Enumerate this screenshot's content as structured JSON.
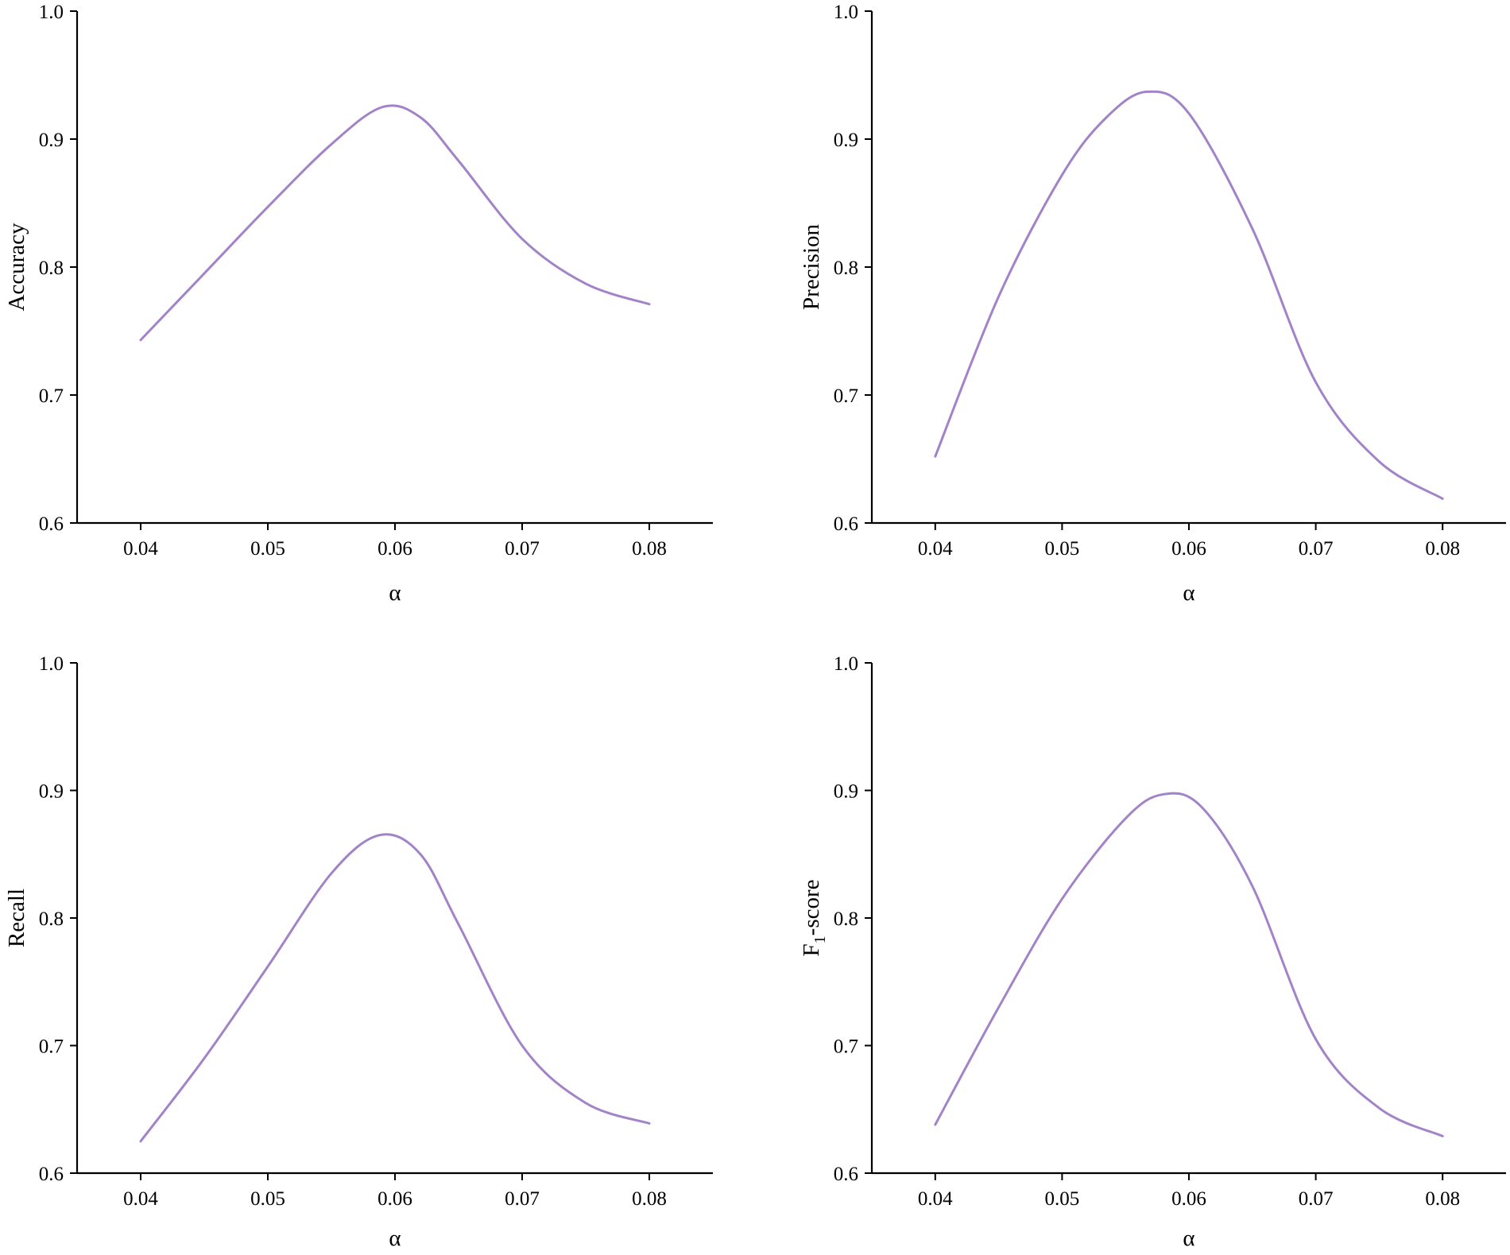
{
  "chart_data": [
    {
      "type": "line",
      "xlabel": "α",
      "ylabel": "Accuracy",
      "xlim": [
        0.035,
        0.085
      ],
      "ylim": [
        0.6,
        1.0
      ],
      "x_ticks": [
        "0.04",
        "0.05",
        "0.06",
        "0.07",
        "0.08"
      ],
      "y_ticks": [
        "0.6",
        "0.7",
        "0.8",
        "0.9",
        "1.0"
      ],
      "line_color": "#a283c8",
      "x": [
        0.04,
        0.045,
        0.05,
        0.055,
        0.059,
        0.062,
        0.065,
        0.07,
        0.075,
        0.08
      ],
      "values": [
        0.743,
        0.795,
        0.847,
        0.896,
        0.925,
        0.917,
        0.883,
        0.822,
        0.787,
        0.771
      ]
    },
    {
      "type": "line",
      "xlabel": "α",
      "ylabel": "Precision",
      "xlim": [
        0.035,
        0.085
      ],
      "ylim": [
        0.6,
        1.0
      ],
      "x_ticks": [
        "0.04",
        "0.05",
        "0.06",
        "0.07",
        "0.08"
      ],
      "y_ticks": [
        "0.6",
        "0.7",
        "0.8",
        "0.9",
        "1.0"
      ],
      "line_color": "#a283c8",
      "x": [
        0.04,
        0.045,
        0.05,
        0.0535,
        0.0567,
        0.06,
        0.065,
        0.07,
        0.075,
        0.08
      ],
      "values": [
        0.652,
        0.777,
        0.872,
        0.917,
        0.937,
        0.92,
        0.83,
        0.71,
        0.648,
        0.619
      ]
    },
    {
      "type": "line",
      "xlabel": "α",
      "ylabel": "Recall",
      "xlim": [
        0.035,
        0.085
      ],
      "ylim": [
        0.6,
        1.0
      ],
      "x_ticks": [
        "0.04",
        "0.05",
        "0.06",
        "0.07",
        "0.08"
      ],
      "y_ticks": [
        "0.6",
        "0.7",
        "0.8",
        "0.9",
        "1.0"
      ],
      "line_color": "#a283c8",
      "x": [
        0.04,
        0.045,
        0.05,
        0.055,
        0.0588,
        0.062,
        0.065,
        0.07,
        0.075,
        0.08
      ],
      "values": [
        0.625,
        0.69,
        0.762,
        0.835,
        0.865,
        0.85,
        0.795,
        0.7,
        0.655,
        0.639
      ]
    },
    {
      "type": "line",
      "xlabel": "α",
      "ylabel": "F1-score",
      "ylabel_main": "F",
      "ylabel_sub": "1",
      "ylabel_suffix": "-score",
      "xlim": [
        0.035,
        0.085
      ],
      "ylim": [
        0.6,
        1.0
      ],
      "x_ticks": [
        "0.04",
        "0.05",
        "0.06",
        "0.07",
        "0.08"
      ],
      "y_ticks": [
        "0.6",
        "0.7",
        "0.8",
        "0.9",
        "1.0"
      ],
      "line_color": "#a283c8",
      "x": [
        0.04,
        0.045,
        0.05,
        0.055,
        0.058,
        0.061,
        0.065,
        0.07,
        0.075,
        0.08
      ],
      "values": [
        0.638,
        0.73,
        0.815,
        0.878,
        0.897,
        0.887,
        0.825,
        0.705,
        0.651,
        0.629
      ]
    }
  ]
}
